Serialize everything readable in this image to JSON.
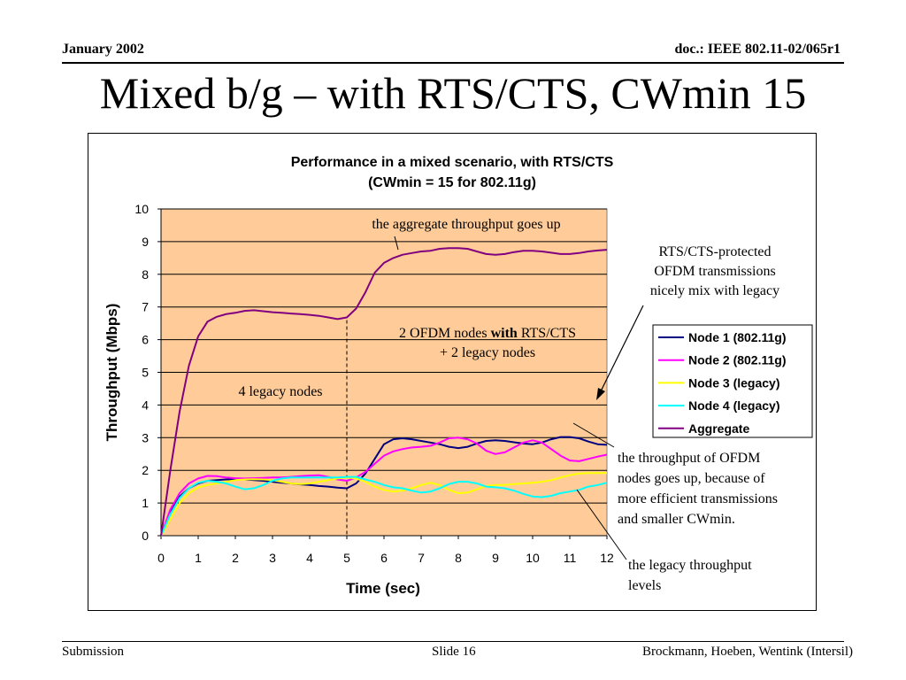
{
  "header": {
    "date": "January 2002",
    "doc_id": "doc.: IEEE 802.11-02/065r1"
  },
  "slide_title": "Mixed b/g – with RTS/CTS, CWmin 15",
  "footer": {
    "left": "Submission",
    "center": "Slide 16",
    "right": "Brockmann, Hoeben, Wentink (Intersil)"
  },
  "chart_data": {
    "type": "line",
    "title": [
      "Performance in a mixed scenario, with RTS/CTS",
      "(CWmin = 15 for 802.11g)"
    ],
    "xlabel": "Time (sec)",
    "ylabel": "Throughput (Mbps)",
    "xlim": [
      0,
      12
    ],
    "ylim": [
      0,
      10
    ],
    "xticks": [
      0,
      1,
      2,
      3,
      4,
      5,
      6,
      7,
      8,
      9,
      10,
      11,
      12
    ],
    "yticks": [
      0,
      1,
      2,
      3,
      4,
      5,
      6,
      7,
      8,
      9,
      10
    ],
    "grid": "horizontal",
    "plot_background": "#FFCC99",
    "legend_position": "right",
    "x": [
      0,
      0.25,
      0.5,
      0.75,
      1,
      1.25,
      1.5,
      1.75,
      2,
      2.25,
      2.5,
      2.75,
      3,
      3.25,
      3.5,
      3.75,
      4,
      4.25,
      4.5,
      4.75,
      5,
      5.25,
      5.5,
      5.75,
      6,
      6.25,
      6.5,
      6.75,
      7,
      7.25,
      7.5,
      7.75,
      8,
      8.25,
      8.5,
      8.75,
      9,
      9.25,
      9.5,
      9.75,
      10,
      10.25,
      10.5,
      10.75,
      11,
      11.25,
      11.5,
      11.75,
      12
    ],
    "series": [
      {
        "name": "Node 1 (802.11g)",
        "color": "#000080",
        "values": [
          0,
          0.7,
          1.2,
          1.45,
          1.6,
          1.68,
          1.7,
          1.72,
          1.73,
          1.72,
          1.7,
          1.68,
          1.65,
          1.62,
          1.6,
          1.57,
          1.55,
          1.52,
          1.5,
          1.47,
          1.45,
          1.6,
          1.9,
          2.35,
          2.8,
          2.95,
          2.98,
          2.95,
          2.9,
          2.85,
          2.8,
          2.72,
          2.68,
          2.72,
          2.82,
          2.9,
          2.92,
          2.9,
          2.86,
          2.82,
          2.8,
          2.85,
          2.95,
          3.02,
          3.02,
          2.98,
          2.88,
          2.8,
          2.78
        ]
      },
      {
        "name": "Node 2 (802.11g)",
        "color": "#FF00FF",
        "values": [
          0,
          0.8,
          1.3,
          1.6,
          1.75,
          1.83,
          1.82,
          1.78,
          1.76,
          1.75,
          1.76,
          1.77,
          1.78,
          1.78,
          1.8,
          1.82,
          1.84,
          1.85,
          1.8,
          1.72,
          1.68,
          1.78,
          1.95,
          2.2,
          2.45,
          2.58,
          2.65,
          2.7,
          2.72,
          2.75,
          2.85,
          2.98,
          3.0,
          2.95,
          2.82,
          2.6,
          2.5,
          2.55,
          2.7,
          2.85,
          2.92,
          2.85,
          2.65,
          2.45,
          2.3,
          2.28,
          2.35,
          2.42,
          2.48
        ]
      },
      {
        "name": "Node 3 (legacy)",
        "color": "#FFFF00",
        "values": [
          0,
          0.5,
          1.0,
          1.3,
          1.48,
          1.55,
          1.6,
          1.65,
          1.7,
          1.72,
          1.73,
          1.72,
          1.7,
          1.65,
          1.6,
          1.58,
          1.6,
          1.65,
          1.7,
          1.75,
          1.78,
          1.75,
          1.65,
          1.5,
          1.4,
          1.35,
          1.38,
          1.45,
          1.55,
          1.62,
          1.55,
          1.4,
          1.3,
          1.32,
          1.42,
          1.52,
          1.55,
          1.55,
          1.58,
          1.6,
          1.62,
          1.65,
          1.7,
          1.78,
          1.85,
          1.9,
          1.92,
          1.92,
          1.92
        ]
      },
      {
        "name": "Node 4 (legacy)",
        "color": "#00FFFF",
        "values": [
          0,
          0.65,
          1.15,
          1.45,
          1.62,
          1.68,
          1.65,
          1.6,
          1.5,
          1.42,
          1.45,
          1.55,
          1.68,
          1.75,
          1.78,
          1.78,
          1.78,
          1.78,
          1.78,
          1.78,
          1.8,
          1.8,
          1.72,
          1.65,
          1.55,
          1.48,
          1.45,
          1.38,
          1.32,
          1.35,
          1.45,
          1.58,
          1.65,
          1.65,
          1.6,
          1.5,
          1.48,
          1.45,
          1.38,
          1.28,
          1.2,
          1.18,
          1.22,
          1.3,
          1.35,
          1.4,
          1.5,
          1.55,
          1.62
        ]
      },
      {
        "name": "Aggregate",
        "color": "#800080",
        "values": [
          0,
          2.0,
          3.8,
          5.2,
          6.1,
          6.55,
          6.7,
          6.78,
          6.82,
          6.88,
          6.9,
          6.87,
          6.84,
          6.82,
          6.8,
          6.78,
          6.76,
          6.73,
          6.68,
          6.63,
          6.68,
          6.95,
          7.45,
          8.05,
          8.35,
          8.5,
          8.6,
          8.65,
          8.7,
          8.72,
          8.78,
          8.8,
          8.8,
          8.78,
          8.7,
          8.62,
          8.6,
          8.62,
          8.68,
          8.72,
          8.72,
          8.7,
          8.66,
          8.62,
          8.62,
          8.65,
          8.7,
          8.73,
          8.75
        ]
      }
    ],
    "reference_line": {
      "x": 5,
      "style": "dashed"
    },
    "annotations": [
      {
        "id": "agg",
        "text": [
          "the aggregate throughput goes up"
        ]
      },
      {
        "id": "ofdm",
        "text": [
          "2 OFDM nodes ",
          "with",
          " RTS/CTS",
          "+ 2 legacy nodes"
        ]
      },
      {
        "id": "legacy4",
        "text": [
          "4 legacy nodes"
        ]
      },
      {
        "id": "rts",
        "text": [
          "RTS/CTS-protected",
          "OFDM transmissions",
          "nicely mix with legacy"
        ]
      },
      {
        "id": "ofdm_up",
        "text": [
          "the throughput of OFDM",
          "nodes goes up, because of",
          "more efficient transmissions",
          "and smaller CWmin."
        ]
      },
      {
        "id": "legacy_lvl",
        "text": [
          "the legacy throughput",
          "levels"
        ]
      }
    ]
  }
}
